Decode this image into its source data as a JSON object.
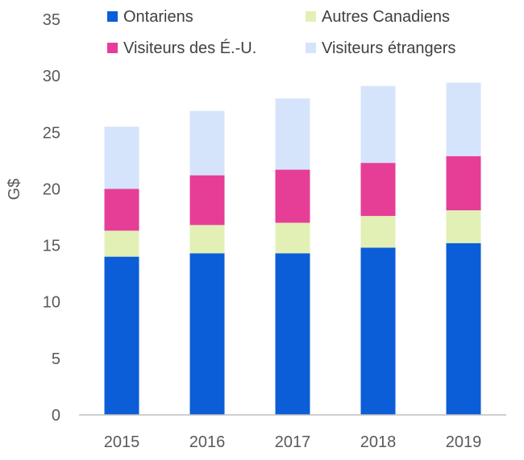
{
  "chart_data": {
    "type": "bar",
    "stacked": true,
    "categories": [
      "2015",
      "2016",
      "2017",
      "2018",
      "2019"
    ],
    "series": [
      {
        "name": "Ontariens",
        "color": "#0b5ed7",
        "values": [
          14.0,
          14.3,
          14.3,
          14.8,
          15.2
        ]
      },
      {
        "name": "Autres Canadiens",
        "color": "#e2f0b6",
        "values": [
          2.3,
          2.5,
          2.7,
          2.8,
          2.9
        ]
      },
      {
        "name": "Visiteurs des É.-U.",
        "color": "#e63e96",
        "values": [
          3.7,
          4.4,
          4.7,
          4.7,
          4.8
        ]
      },
      {
        "name": "Visiteurs étrangers",
        "color": "#d6e4fb",
        "values": [
          5.5,
          5.7,
          6.3,
          6.8,
          6.5
        ]
      }
    ],
    "ylabel": "G$",
    "xlabel": "",
    "ylim": [
      0,
      35
    ],
    "yticks": [
      0,
      5,
      10,
      15,
      20,
      25,
      30,
      35
    ],
    "grid": false,
    "legend_position": "top"
  }
}
